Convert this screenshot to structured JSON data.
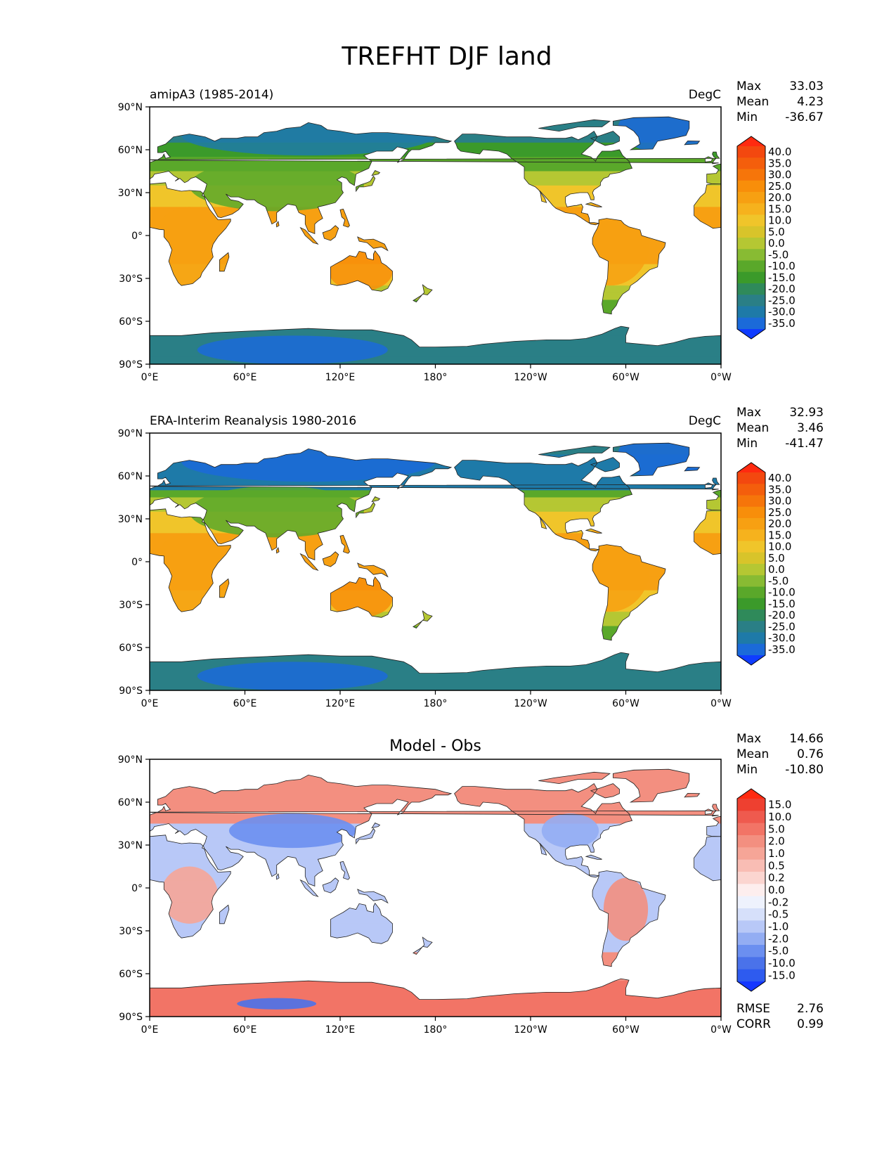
{
  "figure_title": "TREFHT DJF land",
  "colors": {
    "ocean": "#ffffff",
    "coast": "#222222",
    "frame": "#000000",
    "abs_scale": [
      "#0f3cff",
      "#1b6ad9",
      "#1e7aa8",
      "#2a7f86",
      "#2f8a5a",
      "#3b9a2a",
      "#5aa82a",
      "#88bb33",
      "#b5c733",
      "#d8c42a",
      "#f0c52a",
      "#f6b21d",
      "#f7a012",
      "#f88e0a",
      "#f6750a",
      "#f45e0c",
      "#f3480f",
      "#ff2a10"
    ],
    "diff_scale": [
      "#1437ff",
      "#2e5bef",
      "#4a72ea",
      "#6b8ff0",
      "#93adf3",
      "#b8c8f7",
      "#d6e0fa",
      "#eef2fd",
      "#fdeeee",
      "#fbd5d0",
      "#f9bdb4",
      "#f6a597",
      "#f38f80",
      "#f27466",
      "#ef5a4e",
      "#ee4030",
      "#ff2a10"
    ]
  },
  "panels": [
    {
      "id": "model",
      "title_left": "amipA3 (1985-2014)",
      "title_center": "",
      "units": "DegC",
      "stats": [
        {
          "label": "Max",
          "value": "33.03"
        },
        {
          "label": "Mean",
          "value": "4.23"
        },
        {
          "label": "Min",
          "value": "-36.67"
        }
      ],
      "colorbar": {
        "type": "abs",
        "ticks": [
          "40.0",
          "35.0",
          "30.0",
          "25.0",
          "20.0",
          "15.0",
          "10.0",
          "5.0",
          "0.0",
          "-5.0",
          "-10.0",
          "-15.0",
          "-20.0",
          "-25.0",
          "-30.0",
          "-35.0"
        ]
      },
      "extra_stats": []
    },
    {
      "id": "obs",
      "title_left": "ERA-Interim Reanalysis 1980-2016",
      "title_center": "",
      "units": "DegC",
      "stats": [
        {
          "label": "Max",
          "value": "32.93"
        },
        {
          "label": "Mean",
          "value": "3.46"
        },
        {
          "label": "Min",
          "value": "-41.47"
        }
      ],
      "colorbar": {
        "type": "abs",
        "ticks": [
          "40.0",
          "35.0",
          "30.0",
          "25.0",
          "20.0",
          "15.0",
          "10.0",
          "5.0",
          "0.0",
          "-5.0",
          "-10.0",
          "-15.0",
          "-20.0",
          "-25.0",
          "-30.0",
          "-35.0"
        ]
      },
      "extra_stats": []
    },
    {
      "id": "diff",
      "title_left": "",
      "title_center": "Model - Obs",
      "units": "",
      "stats": [
        {
          "label": "Max",
          "value": "14.66"
        },
        {
          "label": "Mean",
          "value": "0.76"
        },
        {
          "label": "Min",
          "value": "-10.80"
        }
      ],
      "colorbar": {
        "type": "diff",
        "ticks": [
          "15.0",
          "10.0",
          "5.0",
          "2.0",
          "1.0",
          "0.5",
          "0.2",
          "0.0",
          "-0.2",
          "-0.5",
          "-1.0",
          "-2.0",
          "-5.0",
          "-10.0",
          "-15.0"
        ]
      },
      "extra_stats": [
        {
          "label": "RMSE",
          "value": "2.76"
        },
        {
          "label": "CORR",
          "value": "0.99"
        }
      ]
    }
  ],
  "lat_ticks": [
    "90°N",
    "60°N",
    "30°N",
    "0°",
    "30°S",
    "60°S",
    "90°S"
  ],
  "lon_ticks": [
    "0°E",
    "60°E",
    "120°E",
    "180°",
    "120°W",
    "60°W",
    "0°W"
  ]
}
